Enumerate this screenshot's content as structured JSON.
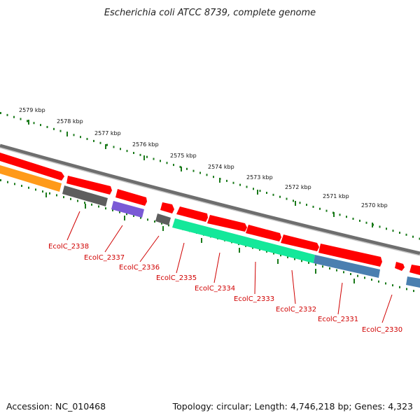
{
  "title": "Escherichia coli ATCC 8739, complete genome",
  "footer": {
    "accession": "Accession: NC_010468",
    "topology": "Topology: circular; Length: 4,746,218 bp; Genes: 4,323"
  },
  "scale_ticks": [
    {
      "label": "2579 kbp",
      "at": 2579
    },
    {
      "label": "2578 kbp",
      "at": 2578
    },
    {
      "label": "2577 kbp",
      "at": 2577
    },
    {
      "label": "2576 kbp",
      "at": 2576
    },
    {
      "label": "2575 kbp",
      "at": 2575
    },
    {
      "label": "2574 kbp",
      "at": 2574
    },
    {
      "label": "2573 kbp",
      "at": 2573
    },
    {
      "label": "2572 kbp",
      "at": 2572
    },
    {
      "label": "2571 kbp",
      "at": 2571
    },
    {
      "label": "2570 kbp",
      "at": 2570
    }
  ],
  "gene_labels": [
    {
      "name": "EcolC_2338"
    },
    {
      "name": "EcolC_2337"
    },
    {
      "name": "EcolC_2336"
    },
    {
      "name": "EcolC_2335"
    },
    {
      "name": "EcolC_2334"
    },
    {
      "name": "EcolC_2333"
    },
    {
      "name": "EcolC_2332"
    },
    {
      "name": "EcolC_2331"
    },
    {
      "name": "EcolC_2330"
    }
  ],
  "colors": {
    "cds": "#ff0000",
    "backbone": "#8a8a8a",
    "tick": "#1a7a1a",
    "label": "#d00000",
    "gray_feature": "#5e5e5e",
    "purple_feature": "#7a5ad6",
    "teal_feature": "#14e89a",
    "blue_feature": "#4a7fb0",
    "orange_feature": "#ff9a1a"
  }
}
